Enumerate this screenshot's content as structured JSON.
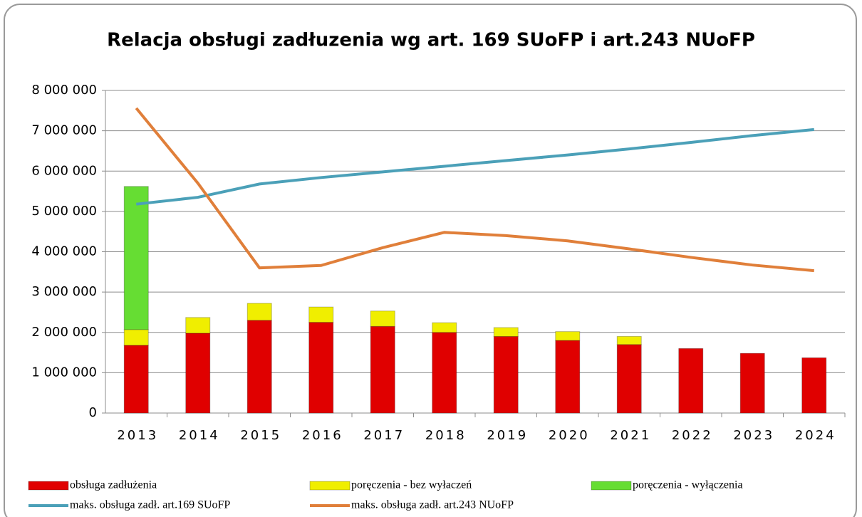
{
  "chart_data": {
    "type": "bar",
    "stacked": true,
    "title": "Relacja obsługi zadłuzenia wg art. 169 SUoFP i art.243 NUoFP",
    "categories": [
      "2013",
      "2014",
      "2015",
      "2016",
      "2017",
      "2018",
      "2019",
      "2020",
      "2021",
      "2022",
      "2023",
      "2024"
    ],
    "series": [
      {
        "name": "obsługa zadłużenia",
        "type": "bar",
        "color": "#e00000",
        "values": [
          1680000,
          1980000,
          2300000,
          2250000,
          2150000,
          2000000,
          1900000,
          1800000,
          1700000,
          1600000,
          1480000,
          1370000
        ]
      },
      {
        "name": "poręczenia - bez wyłaczeń",
        "type": "bar",
        "color": "#f0ee00",
        "values": [
          390000,
          390000,
          420000,
          380000,
          380000,
          240000,
          220000,
          220000,
          200000,
          0,
          0,
          0
        ]
      },
      {
        "name": "poręczenia - wyłączenia",
        "type": "bar",
        "color": "#66dd33",
        "values": [
          3550000,
          0,
          0,
          0,
          0,
          0,
          0,
          0,
          0,
          0,
          0,
          0
        ]
      },
      {
        "name": "maks. obsługa zadł. art.169 SUoFP",
        "type": "line",
        "color": "#4ba0b8",
        "values": [
          5180000,
          5350000,
          5680000,
          5840000,
          5980000,
          6120000,
          6260000,
          6400000,
          6550000,
          6710000,
          6880000,
          7030000
        ]
      },
      {
        "name": "maks. obsługa zadł. art.243 NUoFP",
        "type": "line",
        "color": "#e07f3a",
        "values": [
          7560000,
          5700000,
          3600000,
          3660000,
          4100000,
          4480000,
          4400000,
          4270000,
          4070000,
          3860000,
          3670000,
          3530000
        ]
      }
    ],
    "ylim": [
      0,
      8000000
    ],
    "yticks": [
      0,
      {
        "value": 1000000,
        "label": "1 000 000"
      },
      {
        "value": 2000000,
        "label": "2 000 000"
      },
      {
        "value": 3000000,
        "label": "3 000 000"
      },
      {
        "value": 4000000,
        "label": "4 000 000"
      },
      {
        "value": 5000000,
        "label": "5 000 000"
      },
      {
        "value": 6000000,
        "label": "6 000 000"
      },
      {
        "value": 7000000,
        "label": "7 000 000"
      },
      {
        "value": 8000000,
        "label": "8 000 000"
      }
    ],
    "grid": true,
    "legend": "bottom"
  }
}
